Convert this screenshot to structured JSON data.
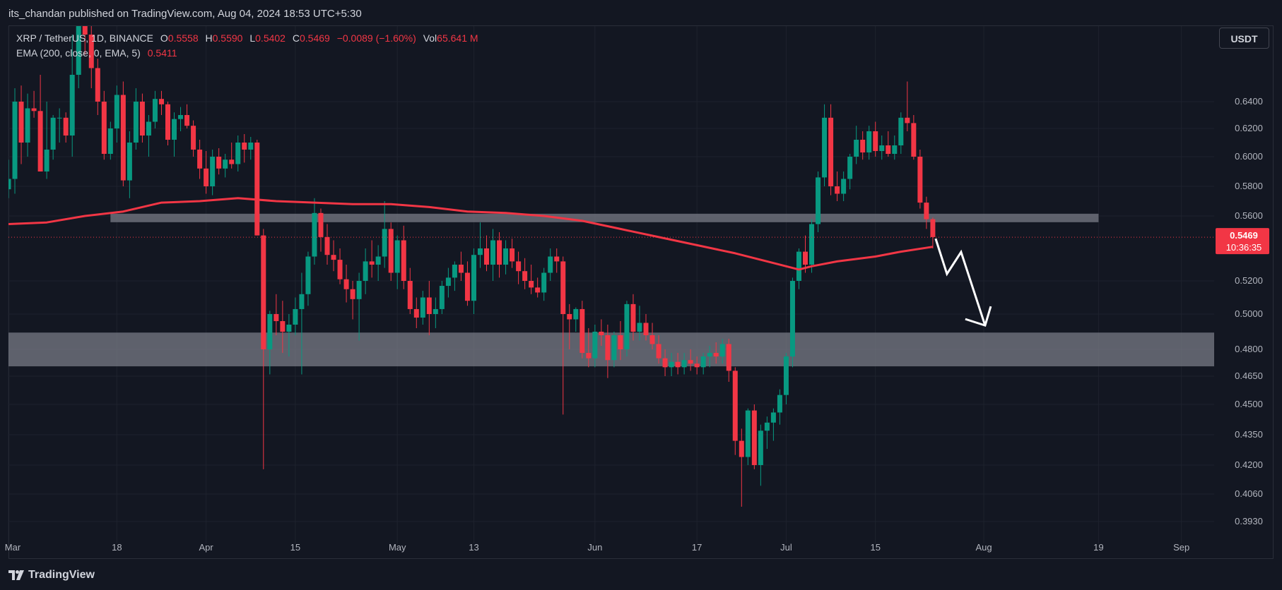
{
  "publish_info": "its_chandan published on TradingView.com, Aug 04, 2024 18:53 UTC+5:30",
  "legend": {
    "symbol": "XRP / TetherUS, 1D, BINANCE",
    "o_label": "O",
    "o_value": "0.5558",
    "h_label": "H",
    "h_value": "0.5590",
    "l_label": "L",
    "l_value": "0.5402",
    "c_label": "C",
    "c_value": "0.5469",
    "change": "−0.0089 (−1.60%)",
    "vol_label": "Vol",
    "vol_value": "65.641 M",
    "ema_label": "EMA (200, close, 0, EMA, 5)",
    "ema_value": "0.5411"
  },
  "currency_button": "USDT",
  "brand": "TradingView",
  "colors": {
    "background": "#131722",
    "up": "#089981",
    "down": "#f23645",
    "ema": "#f23645",
    "zone": "#787b86",
    "grid": "#1e222d",
    "price_tag": "#f23645"
  },
  "chart_data": {
    "type": "candlestick",
    "title": "XRP / TetherUS, 1D, BINANCE",
    "price_ticks": [
      "0.6400",
      "0.6200",
      "0.6000",
      "0.5800",
      "0.5600",
      "0.5200",
      "0.5000",
      "0.4800",
      "0.4650",
      "0.4500",
      "0.4350",
      "0.4200",
      "0.4060",
      "0.3930"
    ],
    "time_ticks": [
      {
        "label": "Mar",
        "day": 0
      },
      {
        "label": "18",
        "day": 17
      },
      {
        "label": "Apr",
        "day": 31
      },
      {
        "label": "15",
        "day": 45
      },
      {
        "label": "May",
        "day": 61
      },
      {
        "label": "13",
        "day": 73
      },
      {
        "label": "Jun",
        "day": 92
      },
      {
        "label": "17",
        "day": 108
      },
      {
        "label": "Jul",
        "day": 122
      },
      {
        "label": "15",
        "day": 136
      },
      {
        "label": "Aug",
        "day": 153
      },
      {
        "label": "19",
        "day": 171
      },
      {
        "label": "Sep",
        "day": 184
      }
    ],
    "last_price": "0.5469",
    "countdown": "10:36:35",
    "candles": [
      [
        0,
        0.578,
        0.598,
        0.572,
        0.585
      ],
      [
        1,
        0.585,
        0.65,
        0.575,
        0.64
      ],
      [
        2,
        0.64,
        0.652,
        0.595,
        0.61
      ],
      [
        3,
        0.61,
        0.646,
        0.6,
        0.635
      ],
      [
        4,
        0.635,
        0.648,
        0.628,
        0.633
      ],
      [
        5,
        0.633,
        0.66,
        0.59,
        0.59
      ],
      [
        6,
        0.59,
        0.64,
        0.585,
        0.605
      ],
      [
        7,
        0.605,
        0.63,
        0.598,
        0.628
      ],
      [
        8,
        0.628,
        0.635,
        0.61,
        0.628
      ],
      [
        9,
        0.628,
        0.632,
        0.61,
        0.615
      ],
      [
        10,
        0.615,
        0.69,
        0.6,
        0.66
      ],
      [
        11,
        0.66,
        0.72,
        0.65,
        0.715
      ],
      [
        12,
        0.715,
        0.72,
        0.675,
        0.69
      ],
      [
        13,
        0.69,
        0.705,
        0.65,
        0.665
      ],
      [
        14,
        0.665,
        0.672,
        0.63,
        0.64
      ],
      [
        15,
        0.64,
        0.648,
        0.598,
        0.602
      ],
      [
        16,
        0.602,
        0.625,
        0.598,
        0.62
      ],
      [
        17,
        0.62,
        0.652,
        0.61,
        0.645
      ],
      [
        18,
        0.645,
        0.655,
        0.58,
        0.584
      ],
      [
        19,
        0.584,
        0.618,
        0.572,
        0.61
      ],
      [
        20,
        0.61,
        0.65,
        0.605,
        0.64
      ],
      [
        21,
        0.64,
        0.646,
        0.61,
        0.615
      ],
      [
        22,
        0.615,
        0.63,
        0.6,
        0.625
      ],
      [
        23,
        0.625,
        0.648,
        0.62,
        0.642
      ],
      [
        24,
        0.642,
        0.648,
        0.63,
        0.638
      ],
      [
        25,
        0.638,
        0.64,
        0.608,
        0.612
      ],
      [
        26,
        0.612,
        0.632,
        0.6,
        0.627
      ],
      [
        27,
        0.627,
        0.636,
        0.618,
        0.63
      ],
      [
        28,
        0.63,
        0.638,
        0.62,
        0.622
      ],
      [
        29,
        0.622,
        0.626,
        0.6,
        0.605
      ],
      [
        30,
        0.605,
        0.612,
        0.585,
        0.592
      ],
      [
        31,
        0.592,
        0.604,
        0.575,
        0.58
      ],
      [
        32,
        0.58,
        0.605,
        0.574,
        0.6
      ],
      [
        33,
        0.6,
        0.606,
        0.588,
        0.592
      ],
      [
        34,
        0.592,
        0.602,
        0.586,
        0.598
      ],
      [
        35,
        0.598,
        0.61,
        0.592,
        0.595
      ],
      [
        36,
        0.595,
        0.615,
        0.59,
        0.61
      ],
      [
        37,
        0.61,
        0.616,
        0.596,
        0.605
      ],
      [
        38,
        0.605,
        0.614,
        0.598,
        0.61
      ],
      [
        39,
        0.61,
        0.612,
        0.548,
        0.548
      ],
      [
        40,
        0.548,
        0.552,
        0.418,
        0.48
      ],
      [
        41,
        0.48,
        0.502,
        0.466,
        0.5
      ],
      [
        42,
        0.5,
        0.512,
        0.488,
        0.496
      ],
      [
        43,
        0.496,
        0.508,
        0.478,
        0.49
      ],
      [
        44,
        0.49,
        0.5,
        0.476,
        0.494
      ],
      [
        45,
        0.494,
        0.51,
        0.488,
        0.503
      ],
      [
        46,
        0.503,
        0.525,
        0.466,
        0.512
      ],
      [
        47,
        0.512,
        0.538,
        0.505,
        0.535
      ],
      [
        48,
        0.535,
        0.572,
        0.53,
        0.562
      ],
      [
        49,
        0.562,
        0.565,
        0.538,
        0.547
      ],
      [
        50,
        0.547,
        0.555,
        0.53,
        0.536
      ],
      [
        51,
        0.536,
        0.545,
        0.526,
        0.533
      ],
      [
        52,
        0.533,
        0.54,
        0.518,
        0.521
      ],
      [
        53,
        0.521,
        0.53,
        0.507,
        0.515
      ],
      [
        54,
        0.515,
        0.52,
        0.497,
        0.509
      ],
      [
        55,
        0.509,
        0.525,
        0.485,
        0.52
      ],
      [
        56,
        0.52,
        0.54,
        0.512,
        0.532
      ],
      [
        57,
        0.532,
        0.545,
        0.522,
        0.53
      ],
      [
        58,
        0.53,
        0.542,
        0.52,
        0.535
      ],
      [
        59,
        0.535,
        0.57,
        0.528,
        0.552
      ],
      [
        60,
        0.552,
        0.556,
        0.52,
        0.525
      ],
      [
        61,
        0.525,
        0.548,
        0.515,
        0.545
      ],
      [
        62,
        0.545,
        0.554,
        0.515,
        0.52
      ],
      [
        63,
        0.52,
        0.528,
        0.5,
        0.503
      ],
      [
        64,
        0.503,
        0.51,
        0.492,
        0.498
      ],
      [
        65,
        0.498,
        0.514,
        0.494,
        0.51
      ],
      [
        66,
        0.51,
        0.52,
        0.488,
        0.5
      ],
      [
        67,
        0.5,
        0.51,
        0.492,
        0.503
      ],
      [
        68,
        0.503,
        0.52,
        0.5,
        0.517
      ],
      [
        69,
        0.517,
        0.528,
        0.51,
        0.522
      ],
      [
        70,
        0.522,
        0.532,
        0.514,
        0.53
      ],
      [
        71,
        0.53,
        0.538,
        0.52,
        0.525
      ],
      [
        72,
        0.525,
        0.532,
        0.505,
        0.508
      ],
      [
        73,
        0.508,
        0.54,
        0.5,
        0.536
      ],
      [
        74,
        0.536,
        0.556,
        0.528,
        0.54
      ],
      [
        75,
        0.54,
        0.548,
        0.526,
        0.53
      ],
      [
        76,
        0.53,
        0.552,
        0.52,
        0.545
      ],
      [
        77,
        0.545,
        0.55,
        0.522,
        0.53
      ],
      [
        78,
        0.53,
        0.545,
        0.524,
        0.54
      ],
      [
        79,
        0.54,
        0.546,
        0.528,
        0.532
      ],
      [
        80,
        0.532,
        0.538,
        0.518,
        0.526
      ],
      [
        81,
        0.526,
        0.534,
        0.515,
        0.52
      ],
      [
        82,
        0.52,
        0.53,
        0.512,
        0.516
      ],
      [
        83,
        0.516,
        0.522,
        0.51,
        0.513
      ],
      [
        84,
        0.513,
        0.528,
        0.508,
        0.525
      ],
      [
        85,
        0.525,
        0.54,
        0.52,
        0.535
      ],
      [
        86,
        0.535,
        0.54,
        0.525,
        0.532
      ],
      [
        87,
        0.532,
        0.535,
        0.445,
        0.5
      ],
      [
        88,
        0.5,
        0.506,
        0.48,
        0.497
      ],
      [
        89,
        0.497,
        0.504,
        0.49,
        0.503
      ],
      [
        90,
        0.503,
        0.508,
        0.475,
        0.478
      ],
      [
        91,
        0.478,
        0.492,
        0.47,
        0.475
      ],
      [
        92,
        0.475,
        0.494,
        0.47,
        0.49
      ],
      [
        93,
        0.49,
        0.497,
        0.482,
        0.488
      ],
      [
        94,
        0.488,
        0.494,
        0.464,
        0.474
      ],
      [
        95,
        0.474,
        0.49,
        0.47,
        0.488
      ],
      [
        96,
        0.488,
        0.496,
        0.474,
        0.48
      ],
      [
        97,
        0.48,
        0.508,
        0.476,
        0.506
      ],
      [
        98,
        0.506,
        0.512,
        0.485,
        0.49
      ],
      [
        99,
        0.49,
        0.505,
        0.485,
        0.495
      ],
      [
        100,
        0.495,
        0.5,
        0.485,
        0.488
      ],
      [
        101,
        0.488,
        0.495,
        0.48,
        0.483
      ],
      [
        102,
        0.483,
        0.488,
        0.472,
        0.475
      ],
      [
        103,
        0.475,
        0.48,
        0.465,
        0.47
      ],
      [
        104,
        0.47,
        0.478,
        0.465,
        0.473
      ],
      [
        105,
        0.473,
        0.478,
        0.466,
        0.47
      ],
      [
        106,
        0.47,
        0.478,
        0.466,
        0.474
      ],
      [
        107,
        0.474,
        0.48,
        0.468,
        0.472
      ],
      [
        108,
        0.472,
        0.476,
        0.466,
        0.47
      ],
      [
        109,
        0.47,
        0.478,
        0.466,
        0.476
      ],
      [
        110,
        0.476,
        0.482,
        0.47,
        0.478
      ],
      [
        111,
        0.478,
        0.484,
        0.472,
        0.476
      ],
      [
        112,
        0.476,
        0.486,
        0.472,
        0.483
      ],
      [
        113,
        0.483,
        0.486,
        0.462,
        0.468
      ],
      [
        114,
        0.468,
        0.47,
        0.425,
        0.432
      ],
      [
        115,
        0.432,
        0.438,
        0.4,
        0.424
      ],
      [
        116,
        0.424,
        0.448,
        0.42,
        0.447
      ],
      [
        117,
        0.447,
        0.45,
        0.418,
        0.42
      ],
      [
        118,
        0.42,
        0.44,
        0.41,
        0.437
      ],
      [
        119,
        0.437,
        0.444,
        0.428,
        0.441
      ],
      [
        120,
        0.441,
        0.448,
        0.432,
        0.446
      ],
      [
        121,
        0.446,
        0.458,
        0.44,
        0.455
      ],
      [
        122,
        0.455,
        0.478,
        0.45,
        0.476
      ],
      [
        123,
        0.476,
        0.522,
        0.47,
        0.52
      ],
      [
        124,
        0.52,
        0.54,
        0.515,
        0.538
      ],
      [
        125,
        0.538,
        0.548,
        0.525,
        0.53
      ],
      [
        126,
        0.53,
        0.558,
        0.525,
        0.555
      ],
      [
        127,
        0.555,
        0.59,
        0.55,
        0.586
      ],
      [
        128,
        0.586,
        0.638,
        0.58,
        0.628
      ],
      [
        129,
        0.628,
        0.638,
        0.574,
        0.58
      ],
      [
        130,
        0.58,
        0.59,
        0.57,
        0.575
      ],
      [
        131,
        0.575,
        0.59,
        0.57,
        0.585
      ],
      [
        132,
        0.585,
        0.602,
        0.578,
        0.6
      ],
      [
        133,
        0.6,
        0.622,
        0.595,
        0.612
      ],
      [
        134,
        0.612,
        0.618,
        0.598,
        0.603
      ],
      [
        135,
        0.603,
        0.622,
        0.598,
        0.618
      ],
      [
        136,
        0.618,
        0.625,
        0.6,
        0.604
      ],
      [
        137,
        0.604,
        0.615,
        0.598,
        0.608
      ],
      [
        138,
        0.608,
        0.618,
        0.6,
        0.602
      ],
      [
        139,
        0.602,
        0.615,
        0.598,
        0.608
      ],
      [
        140,
        0.608,
        0.632,
        0.602,
        0.628
      ],
      [
        141,
        0.628,
        0.655,
        0.618,
        0.624
      ],
      [
        142,
        0.624,
        0.63,
        0.598,
        0.6
      ],
      [
        143,
        0.6,
        0.605,
        0.565,
        0.569
      ],
      [
        144,
        0.569,
        0.573,
        0.552,
        0.558
      ],
      [
        145,
        0.558,
        0.559,
        0.54,
        0.547
      ]
    ],
    "ema_200": [
      [
        0,
        0.555
      ],
      [
        6,
        0.556
      ],
      [
        12,
        0.56
      ],
      [
        18,
        0.563
      ],
      [
        24,
        0.569
      ],
      [
        30,
        0.57
      ],
      [
        36,
        0.572
      ],
      [
        42,
        0.57
      ],
      [
        48,
        0.569
      ],
      [
        54,
        0.568
      ],
      [
        60,
        0.568
      ],
      [
        66,
        0.566
      ],
      [
        72,
        0.563
      ],
      [
        78,
        0.562
      ],
      [
        84,
        0.56
      ],
      [
        90,
        0.557
      ],
      [
        96,
        0.552
      ],
      [
        102,
        0.547
      ],
      [
        108,
        0.542
      ],
      [
        114,
        0.537
      ],
      [
        120,
        0.531
      ],
      [
        124,
        0.527
      ],
      [
        126,
        0.529
      ],
      [
        130,
        0.532
      ],
      [
        136,
        0.535
      ],
      [
        140,
        0.538
      ],
      [
        145,
        0.541
      ]
    ],
    "zones": [
      {
        "name": "resistance-zone",
        "low": 0.5585,
        "high": 0.5615,
        "from_day": 16,
        "to_day": 171
      },
      {
        "name": "support-zone",
        "low": 0.4705,
        "high": 0.4895,
        "from_day": -1,
        "to_day": 194
      }
    ]
  }
}
